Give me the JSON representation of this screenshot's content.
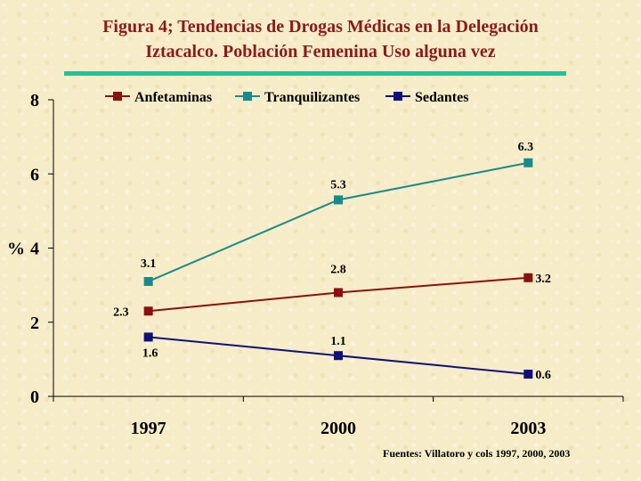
{
  "title": {
    "line1": "Figura 4; Tendencias de Drogas Médicas en  la Delegación",
    "line2": "Iztacalco. Población Femenina Uso alguna vez"
  },
  "source": "Fuentes: Villatoro y cols 1997, 2000, 2003",
  "chart_data": {
    "type": "line",
    "categories": [
      "1997",
      "2000",
      "2003"
    ],
    "ylabel": "%",
    "ylim": [
      0,
      8
    ],
    "yticks": [
      0,
      2,
      4,
      6,
      8
    ],
    "grid": false,
    "legend_position": "top",
    "series": [
      {
        "name": "Anfetaminas",
        "values": [
          2.3,
          2.8,
          3.2
        ],
        "labels": [
          "2.3",
          "2.8",
          "3.2"
        ],
        "color": "#8b1010"
      },
      {
        "name": "Tranquilizantes",
        "values": [
          3.1,
          5.3,
          6.3
        ],
        "labels": [
          "3.1",
          "5.3",
          "6.3"
        ],
        "color": "#168b8b"
      },
      {
        "name": "Sedantes",
        "values": [
          1.6,
          1.1,
          0.6
        ],
        "labels": [
          "1.6",
          "1.1",
          "0.6"
        ],
        "color": "#10107a"
      }
    ]
  }
}
